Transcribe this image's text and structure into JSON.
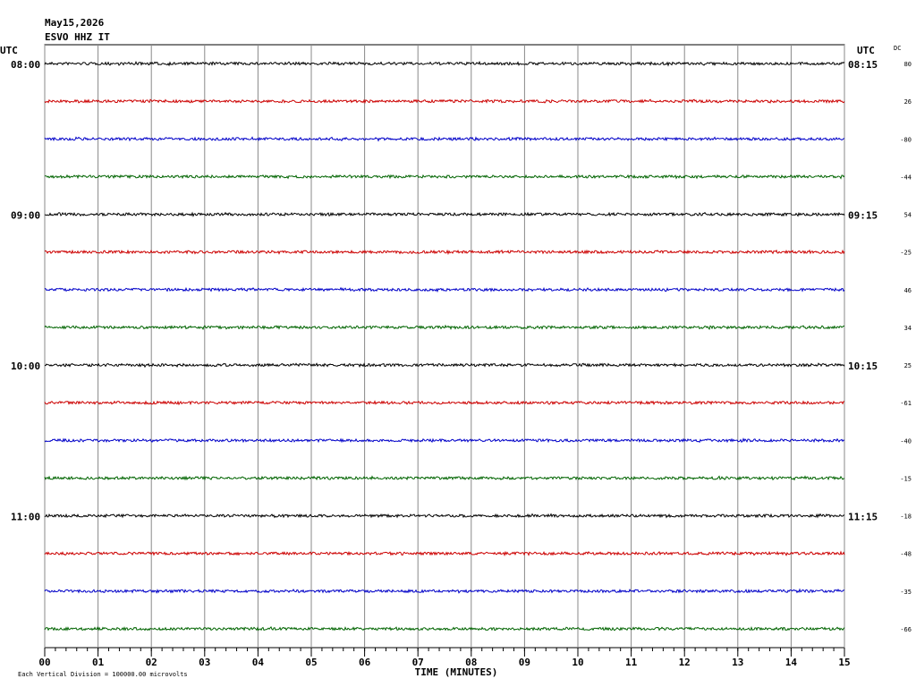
{
  "chart_data": {
    "type": "helicorder",
    "title_lines": [
      "May15,2026",
      "ESVO HHZ IT"
    ],
    "left_axis_label": "UTC",
    "right_axis_label": "UTC",
    "dc_label": "DC",
    "x_label": "TIME (MINUTES)",
    "footnote": "Each Vertical Division = 100000.00 microvolts",
    "xlim": [
      0,
      15
    ],
    "xticks": [
      {
        "value": 0,
        "label": "00"
      },
      {
        "value": 1,
        "label": "01"
      },
      {
        "value": 2,
        "label": "02"
      },
      {
        "value": 3,
        "label": "03"
      },
      {
        "value": 4,
        "label": "04"
      },
      {
        "value": 5,
        "label": "05"
      },
      {
        "value": 6,
        "label": "06"
      },
      {
        "value": 7,
        "label": "07"
      },
      {
        "value": 8,
        "label": "08"
      },
      {
        "value": 9,
        "label": "09"
      },
      {
        "value": 10,
        "label": "10"
      },
      {
        "value": 11,
        "label": "11"
      },
      {
        "value": 12,
        "label": "12"
      },
      {
        "value": 13,
        "label": "13"
      },
      {
        "value": 14,
        "label": "14"
      },
      {
        "value": 15,
        "label": "15"
      }
    ],
    "grid": true,
    "trace_colors": [
      "#000000",
      "#cc0000",
      "#0000c8",
      "#006400"
    ],
    "left_labels": [
      "08:00",
      null,
      null,
      null,
      "09:00",
      null,
      null,
      null,
      "10:00",
      null,
      null,
      null,
      "11:00",
      null,
      null,
      null
    ],
    "right_labels": [
      "08:15",
      null,
      null,
      null,
      "09:15",
      null,
      null,
      null,
      "10:15",
      null,
      null,
      null,
      "11:15",
      null,
      null,
      null
    ],
    "dc_offsets": [
      80,
      26,
      -80,
      -44,
      54,
      -25,
      46,
      34,
      25,
      -61,
      -40,
      -15,
      -18,
      -48,
      -35,
      -66
    ]
  }
}
